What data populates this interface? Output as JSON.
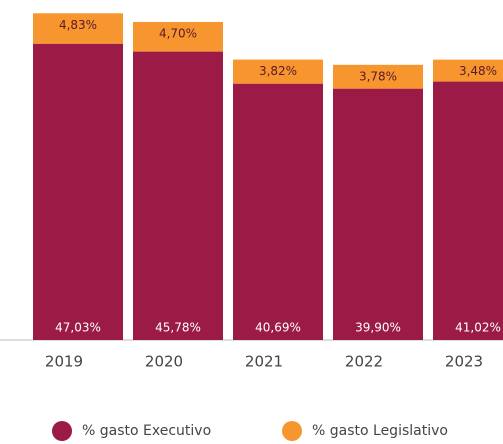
{
  "chart_data": {
    "type": "stacked_bar",
    "categories": [
      "2019",
      "2020",
      "2021",
      "2022",
      "2023"
    ],
    "series": [
      {
        "name": "% gasto Executivo",
        "color": "#9b1b46",
        "values": [
          47.03,
          45.78,
          40.69,
          39.9,
          41.02
        ],
        "value_labels": [
          "47,03%",
          "45,78%",
          "40,69%",
          "39,90%",
          "41,02%"
        ]
      },
      {
        "name": "% gasto Legislativo",
        "color": "#f7962e",
        "values": [
          4.83,
          4.7,
          3.82,
          3.78,
          3.48
        ],
        "value_labels": [
          "4,83%",
          "4,70%",
          "3,82%",
          "3,78%",
          "3,48%"
        ]
      }
    ]
  }
}
